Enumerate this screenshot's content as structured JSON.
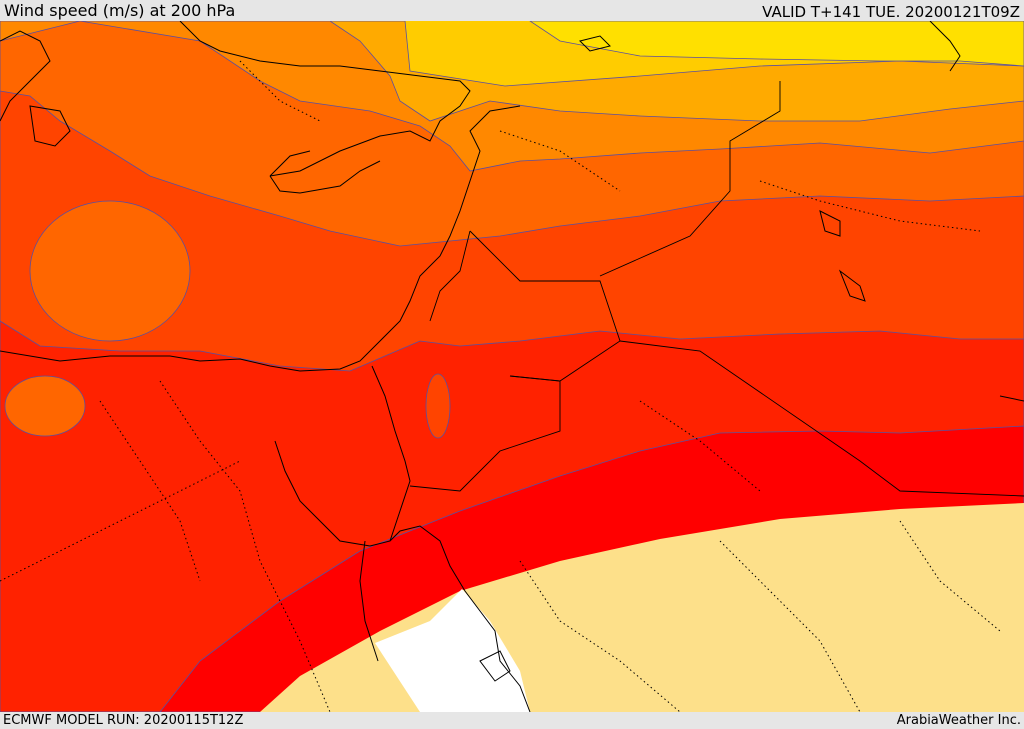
{
  "header": {
    "title": "Wind speed (m/s) at 200 hPa",
    "valid": "VALID T+141 TUE. 20200121T09Z"
  },
  "footer": {
    "model_run": "ECMWF MODEL RUN: 20200115T12Z",
    "credit": "ArabiaWeather Inc."
  },
  "map": {
    "variable": "wind speed",
    "units": "m/s",
    "level": "200 hPa",
    "colors": {
      "band_1": "#fde08a",
      "band_2": "#ffffff",
      "band_3": "#ff0000",
      "band_4": "#ff2200",
      "band_5": "#ff4400",
      "band_6": "#ff6600",
      "band_7": "#ff8800",
      "band_8": "#ffaa00",
      "band_9": "#ffcc00",
      "band_10": "#ffe000",
      "contour_line": "#5a4fa0",
      "coastline": "#000000"
    }
  }
}
